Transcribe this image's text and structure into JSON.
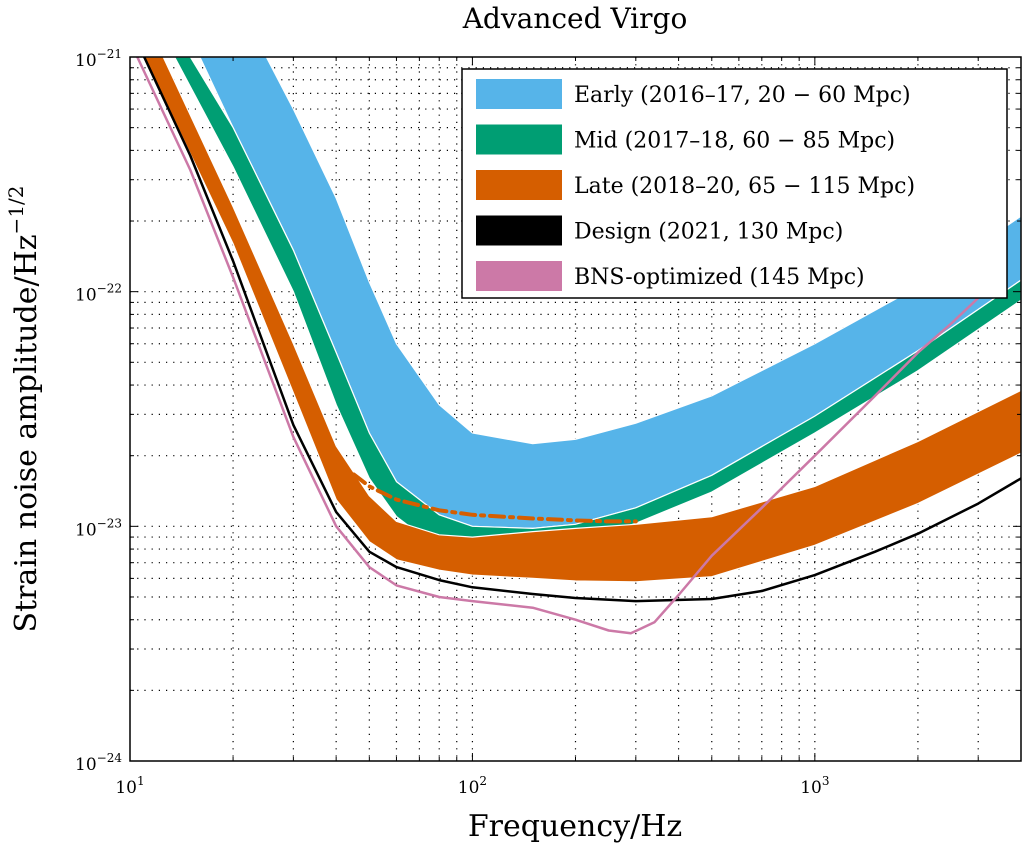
{
  "chart_data": {
    "type": "line",
    "title": "Advanced Virgo",
    "xlabel": "Frequency/Hz",
    "ylabel": "Strain noise amplitude/Hz",
    "ylabel_exponent": "−1/2",
    "x_scale": "log",
    "y_scale": "log",
    "xlim": [
      10,
      4000
    ],
    "ylim": [
      1e-24,
      1e-21
    ],
    "grid": true,
    "legend_position": "top-right",
    "x_ticks": [
      {
        "base": "10",
        "exp": "1"
      },
      {
        "base": "10",
        "exp": "2"
      },
      {
        "base": "10",
        "exp": "3"
      }
    ],
    "y_ticks": [
      {
        "base": "10",
        "exp": "−24"
      },
      {
        "base": "10",
        "exp": "−23"
      },
      {
        "base": "10",
        "exp": "−22"
      },
      {
        "base": "10",
        "exp": "−21"
      }
    ],
    "series": [
      {
        "name": "Early (2016–17, 20 − 60 Mpc)",
        "kind": "band",
        "color": "#56B4E9",
        "upper": [
          [
            25,
            1e-21
          ],
          [
            30,
            6e-22
          ],
          [
            40,
            2.5e-22
          ],
          [
            50,
            1.1e-22
          ],
          [
            60,
            6e-23
          ],
          [
            80,
            3.3e-23
          ],
          [
            100,
            2.5e-23
          ],
          [
            150,
            2.25e-23
          ],
          [
            200,
            2.35e-23
          ],
          [
            300,
            2.75e-23
          ],
          [
            500,
            3.6e-23
          ],
          [
            1000,
            6e-23
          ],
          [
            2000,
            1.05e-22
          ],
          [
            4000,
            2.1e-22
          ]
        ],
        "lower": [
          [
            16,
            1e-21
          ],
          [
            20,
            5e-22
          ],
          [
            30,
            1.5e-22
          ],
          [
            40,
            5.5e-23
          ],
          [
            50,
            2.5e-23
          ],
          [
            60,
            1.55e-23
          ],
          [
            80,
            1.12e-23
          ],
          [
            100,
            1e-23
          ],
          [
            150,
            9.8e-24
          ],
          [
            200,
            1.02e-23
          ],
          [
            300,
            1.2e-23
          ],
          [
            500,
            1.65e-23
          ],
          [
            1000,
            2.95e-23
          ],
          [
            2000,
            5.6e-23
          ],
          [
            4000,
            1.12e-22
          ]
        ]
      },
      {
        "name": "Mid (2017–18, 60 − 85 Mpc)",
        "kind": "band",
        "color": "#009E73",
        "upper": [
          [
            15,
            1e-21
          ],
          [
            20,
            5e-22
          ],
          [
            30,
            1.5e-22
          ],
          [
            40,
            5.5e-23
          ],
          [
            50,
            2.5e-23
          ],
          [
            60,
            1.55e-23
          ],
          [
            80,
            1.12e-23
          ],
          [
            100,
            1e-23
          ],
          [
            150,
            9.8e-24
          ],
          [
            200,
            1.02e-23
          ],
          [
            300,
            1.2e-23
          ],
          [
            500,
            1.65e-23
          ],
          [
            1000,
            2.95e-23
          ],
          [
            2000,
            5.6e-23
          ],
          [
            4000,
            1.12e-22
          ]
        ],
        "lower": [
          [
            13.5,
            1e-21
          ],
          [
            20,
            3.4e-22
          ],
          [
            30,
            1e-22
          ],
          [
            40,
            3.3e-23
          ],
          [
            50,
            1.6e-23
          ],
          [
            60,
            1.1e-23
          ],
          [
            80,
            8e-24
          ],
          [
            100,
            7.6e-24
          ],
          [
            150,
            7.9e-24
          ],
          [
            200,
            8.6e-24
          ],
          [
            300,
            1.03e-23
          ],
          [
            500,
            1.4e-23
          ],
          [
            1000,
            2.5e-23
          ],
          [
            2000,
            4.6e-23
          ],
          [
            4000,
            9.2e-23
          ]
        ]
      },
      {
        "name": "Late (2018–20, 65 − 115 Mpc)",
        "kind": "band",
        "color": "#D55E00",
        "upper": [
          [
            12.5,
            1e-21
          ],
          [
            20,
            2.3e-22
          ],
          [
            30,
            6e-23
          ],
          [
            40,
            2.2e-23
          ],
          [
            50,
            1.35e-23
          ],
          [
            60,
            1.05e-23
          ],
          [
            80,
            9.2e-24
          ],
          [
            100,
            9e-24
          ],
          [
            150,
            9.5e-24
          ],
          [
            200,
            9.8e-24
          ],
          [
            300,
            1.02e-23
          ],
          [
            500,
            1.1e-23
          ],
          [
            1000,
            1.48e-23
          ],
          [
            2000,
            2.3e-23
          ],
          [
            4000,
            3.8e-23
          ]
        ],
        "lower": [
          [
            11,
            1e-21
          ],
          [
            20,
            1.6e-22
          ],
          [
            30,
            3.7e-23
          ],
          [
            40,
            1.3e-23
          ],
          [
            50,
            8.6e-24
          ],
          [
            60,
            7.2e-24
          ],
          [
            80,
            6.5e-24
          ],
          [
            100,
            6.2e-24
          ],
          [
            150,
            6e-24
          ],
          [
            200,
            5.85e-24
          ],
          [
            300,
            5.8e-24
          ],
          [
            500,
            6.1e-24
          ],
          [
            1000,
            8.3e-24
          ],
          [
            2000,
            1.25e-23
          ],
          [
            4000,
            2.05e-23
          ]
        ]
      },
      {
        "name": "Late dash-dot",
        "kind": "dashdot",
        "color": "#D55E00",
        "points": [
          [
            30,
            4.3e-23
          ],
          [
            35,
            2.6e-23
          ],
          [
            40,
            1.9e-23
          ],
          [
            50,
            1.48e-23
          ],
          [
            60,
            1.3e-23
          ],
          [
            80,
            1.17e-23
          ],
          [
            100,
            1.12e-23
          ],
          [
            150,
            1.08e-23
          ],
          [
            200,
            1.06e-23
          ],
          [
            250,
            1.05e-23
          ],
          [
            300,
            1.05e-23
          ]
        ]
      },
      {
        "name": "Design (2021, 130 Mpc)",
        "kind": "line",
        "color": "#000000",
        "points": [
          [
            11,
            1e-21
          ],
          [
            15,
            3.8e-22
          ],
          [
            20,
            1.35e-22
          ],
          [
            30,
            2.7e-23
          ],
          [
            40,
            1.15e-23
          ],
          [
            50,
            7.8e-24
          ],
          [
            60,
            6.7e-24
          ],
          [
            80,
            5.9e-24
          ],
          [
            100,
            5.5e-24
          ],
          [
            150,
            5.15e-24
          ],
          [
            200,
            4.95e-24
          ],
          [
            300,
            4.8e-24
          ],
          [
            500,
            4.9e-24
          ],
          [
            700,
            5.3e-24
          ],
          [
            1000,
            6.2e-24
          ],
          [
            1500,
            7.8e-24
          ],
          [
            2000,
            9.3e-24
          ],
          [
            3000,
            1.25e-23
          ],
          [
            4000,
            1.6e-23
          ]
        ]
      },
      {
        "name": "BNS-optimized (145 Mpc)",
        "kind": "line",
        "color": "#CC79A7",
        "points": [
          [
            10.5,
            1e-21
          ],
          [
            15,
            3.3e-22
          ],
          [
            20,
            1.15e-22
          ],
          [
            30,
            2.4e-23
          ],
          [
            40,
            1e-23
          ],
          [
            50,
            6.7e-24
          ],
          [
            60,
            5.6e-24
          ],
          [
            80,
            5e-24
          ],
          [
            100,
            4.8e-24
          ],
          [
            150,
            4.5e-24
          ],
          [
            200,
            4e-24
          ],
          [
            250,
            3.6e-24
          ],
          [
            290,
            3.5e-24
          ],
          [
            340,
            3.9e-24
          ],
          [
            400,
            5.1e-24
          ],
          [
            500,
            7.5e-24
          ],
          [
            700,
            1.2e-23
          ],
          [
            1000,
            2e-23
          ],
          [
            1500,
            3.6e-23
          ],
          [
            2000,
            5.5e-23
          ],
          [
            2500,
            7.3e-23
          ],
          [
            3000,
            9.4e-23
          ]
        ]
      }
    ],
    "legend": [
      {
        "label": "Early (2016–17, 20 − 60 Mpc)",
        "color": "#56B4E9"
      },
      {
        "label": "Mid (2017–18, 60 − 85 Mpc)",
        "color": "#009E73"
      },
      {
        "label": "Late (2018–20, 65 − 115 Mpc)",
        "color": "#D55E00"
      },
      {
        "label": "Design (2021, 130 Mpc)",
        "color": "#000000"
      },
      {
        "label": "BNS-optimized (145 Mpc)",
        "color": "#CC79A7"
      }
    ]
  }
}
